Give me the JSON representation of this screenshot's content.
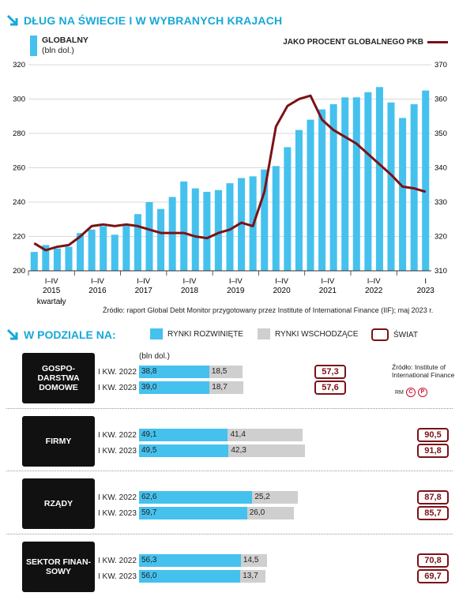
{
  "title": "DŁUG NA ŚWIECIE I W WYBRANYCH KRAJACH",
  "legend_left_title": "GLOBALNY",
  "legend_left_sub": "(bln dol.)",
  "legend_right": "JAKO PROCENT GLOBALNEGO PKB",
  "colors": {
    "accent": "#17a8d8",
    "bar_blue": "#45c1ee",
    "line_red": "#7b1216",
    "gray": "#cfcfcf"
  },
  "chart_data": [
    {
      "type": "bar",
      "title": "DŁUG NA ŚWIECIE I W WYBRANYCH KRAJACH",
      "ylabel": "bln dol.",
      "ylim": [
        200,
        320
      ],
      "yticks": [
        200,
        220,
        240,
        260,
        280,
        300,
        320
      ],
      "y2lim": [
        310,
        370
      ],
      "y2ticks": [
        310,
        320,
        330,
        340,
        350,
        360,
        370
      ],
      "x_tick_labels": [
        "I–IV\n2015",
        "I–IV\n2016",
        "I–IV\n2017",
        "I–IV\n2018",
        "I–IV\n2019",
        "I–IV\n2020",
        "I–IV\n2021",
        "I–IV\n2022",
        "I\n2023"
      ],
      "x_axis_note": "kwartały",
      "series": [
        {
          "name": "GLOBALNY",
          "axis": "left",
          "type": "bar",
          "values": [
            211,
            215,
            213,
            214,
            222,
            224,
            226,
            221,
            227,
            233,
            240,
            236,
            243,
            252,
            248,
            246,
            247,
            251,
            254,
            255,
            259,
            261,
            272,
            282,
            288,
            294,
            297,
            301,
            301,
            304,
            307,
            298,
            289,
            297,
            305
          ]
        },
        {
          "name": "JAKO PROCENT GLOBALNEGO PKB",
          "axis": "right",
          "type": "line",
          "values": [
            318,
            316,
            317,
            317.5,
            320,
            323,
            323.5,
            323,
            323.5,
            323,
            322,
            321,
            321,
            321,
            320,
            319.5,
            321,
            322,
            324,
            323,
            333,
            352,
            358,
            360,
            361,
            354,
            351,
            349,
            347,
            344,
            341,
            338,
            334.5,
            334,
            333
          ]
        }
      ]
    },
    {
      "type": "bar",
      "title": "W PODZIALE NA:",
      "unit": "(bln dol.)",
      "legend": [
        "RYNKI ROZWINIĘTE",
        "RYNKI WSCHODZĄCE",
        "ŚWIAT"
      ],
      "groups": [
        {
          "name": "GOSPO-DARSTWA DOMOWE",
          "rows": [
            {
              "period": "I KW. 2022",
              "developed": "38,8",
              "emerging": "18,5",
              "world": "57,3"
            },
            {
              "period": "I KW. 2023",
              "developed": "39,0",
              "emerging": "18,7",
              "world": "57,6"
            }
          ]
        },
        {
          "name": "FIRMY",
          "rows": [
            {
              "period": "I KW. 2022",
              "developed": "49,1",
              "emerging": "41,4",
              "world": "90,5"
            },
            {
              "period": "I KW. 2023",
              "developed": "49,5",
              "emerging": "42,3",
              "world": "91,8"
            }
          ]
        },
        {
          "name": "RZĄDY",
          "rows": [
            {
              "period": "I KW. 2022",
              "developed": "62,6",
              "emerging": "25,2",
              "world": "87,8"
            },
            {
              "period": "I KW. 2023",
              "developed": "59,7",
              "emerging": "26,0",
              "world": "85,7"
            }
          ]
        },
        {
          "name": "SEKTOR FINAN-SOWY",
          "rows": [
            {
              "period": "I KW. 2022",
              "developed": "56,3",
              "emerging": "14,5",
              "world": "70,8"
            },
            {
              "period": "I KW. 2023",
              "developed": "56,0",
              "emerging": "13,7",
              "world": "69,7"
            }
          ]
        }
      ]
    }
  ],
  "source1": "Źródło: raport Global Debt Monitor przygotowany przez Institute of International Finance (IIF); maj 2023 r.",
  "section2_title": "W PODZIALE NA:",
  "legend2": {
    "developed": "RYNKI ROZWINIĘTE",
    "emerging": "RYNKI WSCHODZĄCE",
    "world": "ŚWIAT"
  },
  "unit2": "(bln dol.)",
  "source2": "Źródło: Institute of International Finance",
  "credit": "RM"
}
